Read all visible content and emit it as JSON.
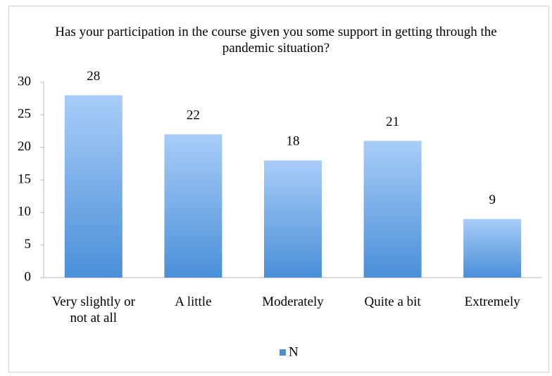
{
  "chart_data": {
    "type": "bar",
    "title": "Has your participation in the course given you some support in getting through the pandemic situation?",
    "categories": [
      "Very slightly or not at all",
      "A little",
      "Moderately",
      "Quite a bit",
      "Extremely"
    ],
    "series": [
      {
        "name": "N",
        "color": "#4a8fd8",
        "values": [
          28,
          22,
          18,
          21,
          9
        ]
      }
    ],
    "ylim": [
      0,
      30
    ],
    "yticks": [
      0,
      5,
      10,
      15,
      20,
      25,
      30
    ],
    "grid": false,
    "legend": "bottom"
  }
}
